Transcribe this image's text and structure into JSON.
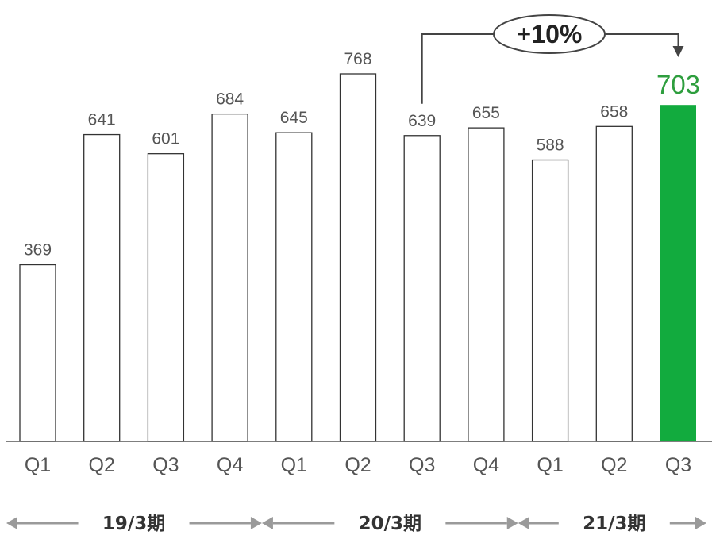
{
  "chart_data": {
    "type": "bar",
    "categories": [
      "Q1",
      "Q2",
      "Q3",
      "Q4",
      "Q1",
      "Q2",
      "Q3",
      "Q4",
      "Q1",
      "Q2",
      "Q3"
    ],
    "values": [
      369,
      641,
      601,
      684,
      645,
      768,
      639,
      655,
      588,
      658,
      703
    ],
    "highlight_index": 10,
    "highlight_color": "#12ab3e",
    "bar_fill": "#ffffff",
    "bar_stroke": "#333333",
    "ylim": [
      0,
      768
    ],
    "grid": false,
    "title": "",
    "xlabel": "",
    "ylabel": "",
    "periods": [
      {
        "label": "19/3期",
        "start": 0,
        "end": 3
      },
      {
        "label": "20/3期",
        "start": 4,
        "end": 7
      },
      {
        "label": "21/3期",
        "start": 8,
        "end": 10
      }
    ],
    "annotation": {
      "label_prefix": "+",
      "label_value": "10%",
      "from_index": 6,
      "to_index": 10
    }
  }
}
